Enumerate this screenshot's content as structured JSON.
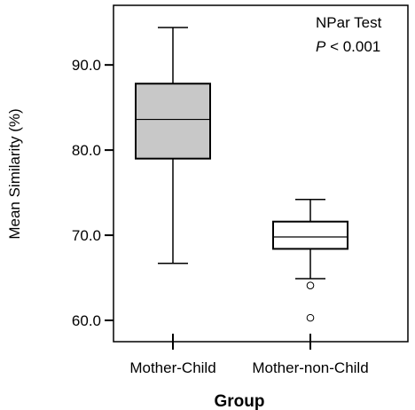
{
  "chart_data": {
    "type": "boxplot",
    "title": "",
    "xlabel": "Group",
    "ylabel": "Mean Similarity (%)",
    "ylim": [
      57.5,
      97.0
    ],
    "yticks": [
      60.0,
      70.0,
      80.0,
      90.0
    ],
    "ytick_labels": [
      "60.0",
      "70.0",
      "80.0",
      "90.0"
    ],
    "categories": [
      "Mother-Child",
      "Mother-non-Child"
    ],
    "boxes": [
      {
        "category": "Mother-Child",
        "whisker_low": 66.7,
        "q1": 79.0,
        "median": 83.6,
        "q3": 87.8,
        "whisker_high": 94.4,
        "outliers": [],
        "fill": "#c8c8c8"
      },
      {
        "category": "Mother-non-Child",
        "whisker_low": 64.9,
        "q1": 68.4,
        "median": 69.8,
        "q3": 71.6,
        "whisker_high": 74.2,
        "outliers": [
          64.1,
          60.3
        ],
        "fill": "#ffffff"
      }
    ],
    "annotation": {
      "line1": "NPar Test",
      "p_symbol": "P",
      "p_rest": " < 0.001"
    },
    "grid": false
  }
}
